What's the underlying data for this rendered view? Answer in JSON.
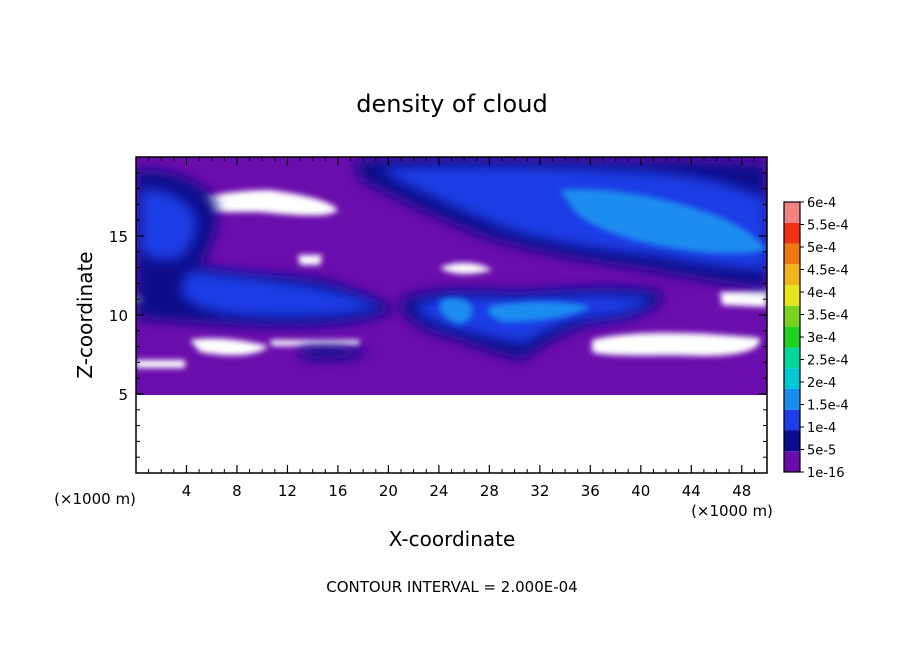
{
  "chart_data": {
    "type": "heatmap",
    "title": "density of cloud",
    "xlabel": "X-coordinate",
    "ylabel": "Z-coordinate",
    "x_unit": "(×1000 m)",
    "y_unit": "(×1000 m)",
    "xlim": [
      0,
      50
    ],
    "ylim": [
      0,
      20
    ],
    "x_ticks": [
      "4",
      "8",
      "12",
      "16",
      "20",
      "24",
      "28",
      "32",
      "36",
      "40",
      "44",
      "48"
    ],
    "y_ticks": [
      "5",
      "10",
      "15"
    ],
    "footer": "CONTOUR INTERVAL = 2.000E-04",
    "colorbar": {
      "levels": [
        "1e-16",
        "5e-5",
        "1e-4",
        "1.5e-4",
        "2e-4",
        "2.5e-4",
        "3e-4",
        "3.5e-4",
        "4e-4",
        "4.5e-4",
        "5e-4",
        "5.5e-4",
        "6e-4"
      ],
      "colors": [
        "#6a0dad",
        "#0a0a8c",
        "#1f3ce6",
        "#1a8cf0",
        "#00c8d2",
        "#00d79a",
        "#1fd01f",
        "#7ad21e",
        "#e6e61e",
        "#f0b41e",
        "#f07814",
        "#f03214",
        "#f08282"
      ]
    },
    "regions": {
      "cloud_top_z": 19.7,
      "cloud_base_z": 5.0,
      "background_level": "1e-16",
      "high_density_bands": [
        {
          "z_range": [
            12.5,
            19.7
          ],
          "x_range": [
            18,
            50
          ],
          "peak_level": "1.5e-4"
        },
        {
          "z_range": [
            9.5,
            17.5
          ],
          "x_range": [
            0,
            12
          ],
          "peak_level": "1e-4"
        },
        {
          "z_range": [
            8.5,
            12.0
          ],
          "x_range": [
            22,
            42
          ],
          "peak_level": "1.5e-4"
        }
      ]
    }
  }
}
